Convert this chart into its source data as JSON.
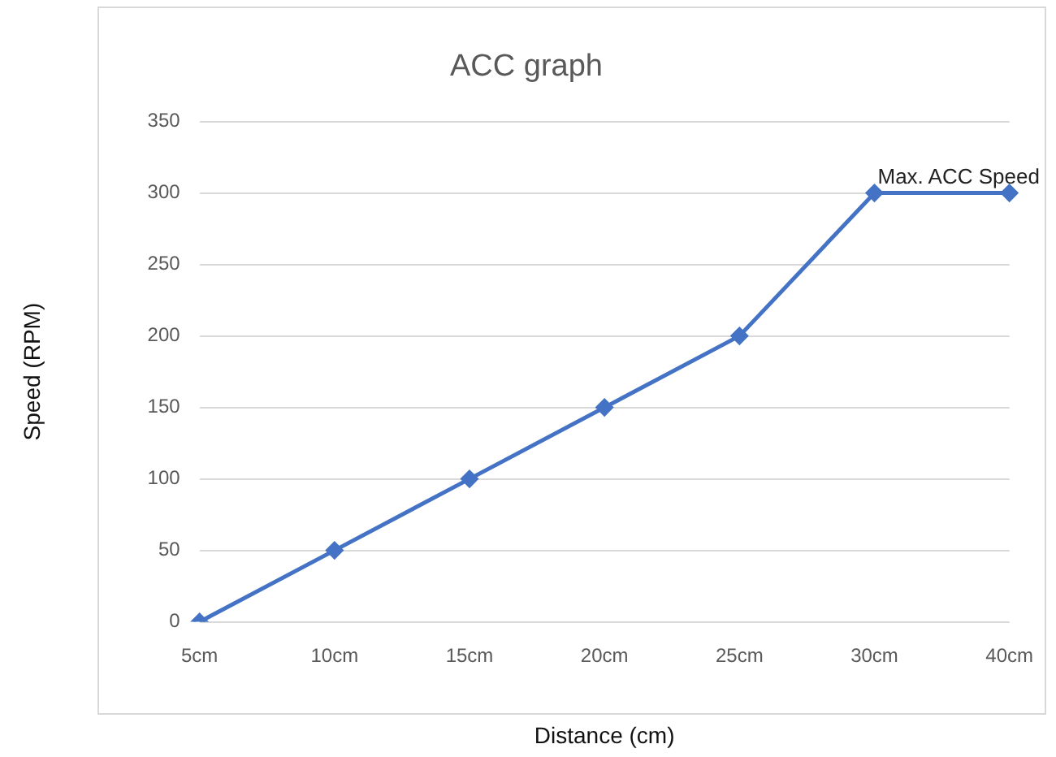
{
  "chart_data": {
    "type": "line",
    "title": "ACC graph",
    "xlabel": "Distance (cm)",
    "ylabel": "Speed (RPM)",
    "categories": [
      "5cm",
      "10cm",
      "15cm",
      "20cm",
      "25cm",
      "30cm",
      "40cm"
    ],
    "series": [
      {
        "color": "#4472c4",
        "values": [
          0,
          50,
          100,
          150,
          200,
          300,
          300
        ]
      }
    ],
    "ylim": [
      0,
      350
    ],
    "yticks": [
      0,
      50,
      100,
      150,
      200,
      250,
      300,
      350
    ],
    "grid": "y",
    "legend": false,
    "marker": "diamond",
    "line_style": "solid",
    "annotations": [
      "Max. ACC Speed"
    ]
  }
}
